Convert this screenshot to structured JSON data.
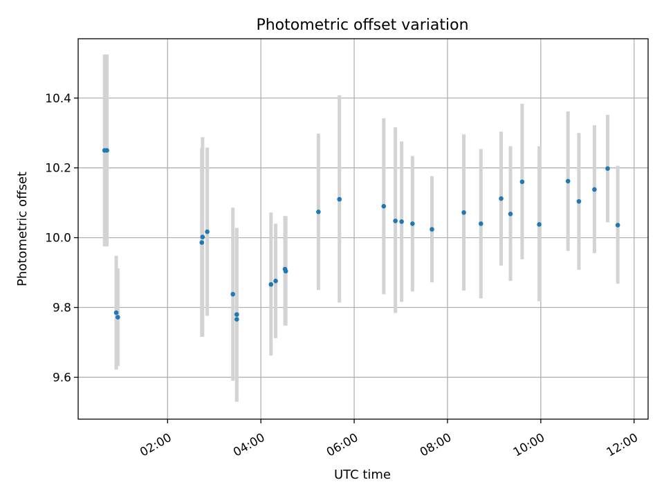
{
  "chart_data": {
    "type": "scatter",
    "title": "Photometric offset variation",
    "xlabel": "UTC time",
    "ylabel": "Photometric offset",
    "x_unit": "UTC time of day (hours)",
    "xlim": [
      "00:05",
      "12:18"
    ],
    "ylim": [
      9.48,
      10.57
    ],
    "x_ticks": [
      {
        "label": "02:00",
        "value": "02:00"
      },
      {
        "label": "04:00",
        "value": "04:00"
      },
      {
        "label": "06:00",
        "value": "06:00"
      },
      {
        "label": "08:00",
        "value": "08:00"
      },
      {
        "label": "10:00",
        "value": "10:00"
      },
      {
        "label": "12:00",
        "value": "12:00"
      }
    ],
    "y_ticks": [
      {
        "label": "9.6",
        "value": 9.6
      },
      {
        "label": "9.8",
        "value": 9.8
      },
      {
        "label": "10.0",
        "value": 10.0
      },
      {
        "label": "10.2",
        "value": 10.2
      },
      {
        "label": "10.4",
        "value": 10.4
      }
    ],
    "grid": true,
    "marker_color": "#1f77b4",
    "errorbar_color": "#d3d3d3",
    "points": [
      {
        "x": "00:39",
        "y": 10.25,
        "err_low": 9.975,
        "err_high": 10.525
      },
      {
        "x": "00:42",
        "y": 10.25,
        "err_low": 9.975,
        "err_high": 10.525
      },
      {
        "x": "00:54",
        "y": 9.785,
        "err_low": 9.622,
        "err_high": 9.948
      },
      {
        "x": "00:56",
        "y": 9.772,
        "err_low": 9.632,
        "err_high": 9.912
      },
      {
        "x": "02:44",
        "y": 9.986,
        "err_low": 9.716,
        "err_high": 10.256
      },
      {
        "x": "02:45",
        "y": 10.002,
        "err_low": 9.716,
        "err_high": 10.288
      },
      {
        "x": "02:51",
        "y": 10.017,
        "err_low": 9.776,
        "err_high": 10.258
      },
      {
        "x": "03:24",
        "y": 9.838,
        "err_low": 9.59,
        "err_high": 10.086
      },
      {
        "x": "03:29",
        "y": 9.78,
        "err_low": 9.53,
        "err_high": 10.028
      },
      {
        "x": "03:29",
        "y": 9.766,
        "err_low": 9.53,
        "err_high": 10.0
      },
      {
        "x": "04:13",
        "y": 9.866,
        "err_low": 9.662,
        "err_high": 10.072
      },
      {
        "x": "04:19",
        "y": 9.876,
        "err_low": 9.712,
        "err_high": 10.04
      },
      {
        "x": "04:31",
        "y": 9.91,
        "err_low": 9.748,
        "err_high": 10.062
      },
      {
        "x": "04:32",
        "y": 9.904,
        "err_low": 9.748,
        "err_high": 10.062
      },
      {
        "x": "05:14",
        "y": 10.074,
        "err_low": 9.85,
        "err_high": 10.298
      },
      {
        "x": "05:41",
        "y": 10.11,
        "err_low": 9.814,
        "err_high": 10.408
      },
      {
        "x": "06:38",
        "y": 10.09,
        "err_low": 9.838,
        "err_high": 10.342
      },
      {
        "x": "06:53",
        "y": 10.048,
        "err_low": 9.784,
        "err_high": 10.316
      },
      {
        "x": "07:01",
        "y": 10.046,
        "err_low": 9.816,
        "err_high": 10.276
      },
      {
        "x": "07:15",
        "y": 10.04,
        "err_low": 9.846,
        "err_high": 10.234
      },
      {
        "x": "07:40",
        "y": 10.024,
        "err_low": 9.872,
        "err_high": 10.176
      },
      {
        "x": "08:21",
        "y": 10.072,
        "err_low": 9.848,
        "err_high": 10.296
      },
      {
        "x": "08:43",
        "y": 10.04,
        "err_low": 9.826,
        "err_high": 10.254
      },
      {
        "x": "09:09",
        "y": 10.112,
        "err_low": 9.92,
        "err_high": 10.304
      },
      {
        "x": "09:21",
        "y": 10.068,
        "err_low": 9.876,
        "err_high": 10.262
      },
      {
        "x": "09:36",
        "y": 10.16,
        "err_low": 9.938,
        "err_high": 10.384
      },
      {
        "x": "09:58",
        "y": 10.038,
        "err_low": 9.818,
        "err_high": 10.262
      },
      {
        "x": "10:35",
        "y": 10.162,
        "err_low": 9.962,
        "err_high": 10.362
      },
      {
        "x": "10:49",
        "y": 10.104,
        "err_low": 9.908,
        "err_high": 10.3
      },
      {
        "x": "11:09",
        "y": 10.138,
        "err_low": 9.956,
        "err_high": 10.322
      },
      {
        "x": "11:26",
        "y": 10.198,
        "err_low": 10.044,
        "err_high": 10.352
      },
      {
        "x": "11:39",
        "y": 10.036,
        "err_low": 9.868,
        "err_high": 10.206
      }
    ]
  }
}
